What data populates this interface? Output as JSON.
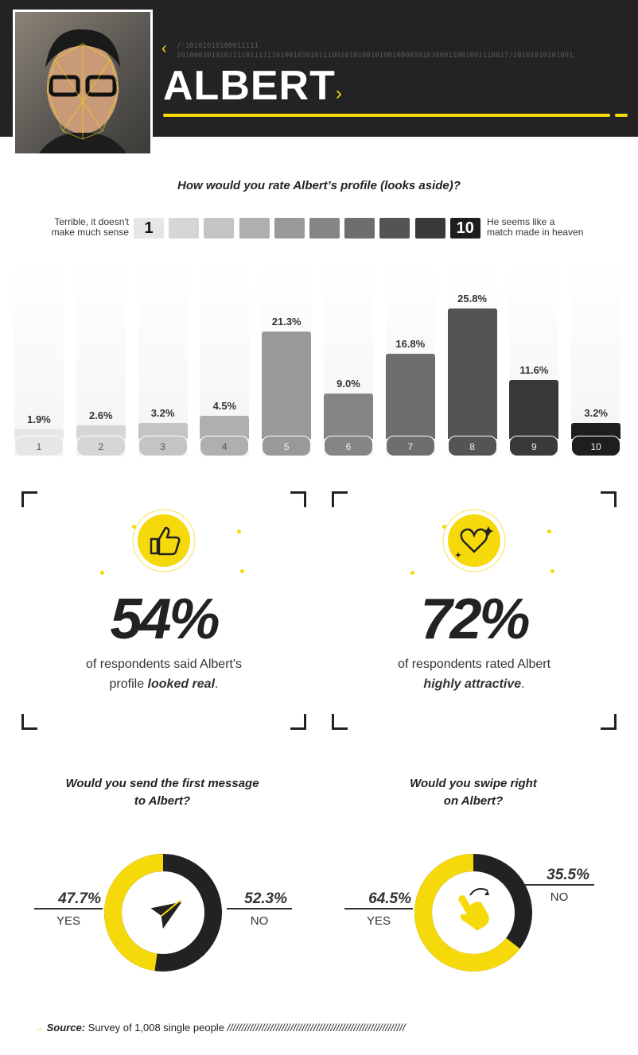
{
  "header": {
    "title": "ALBERT",
    "binary_line1": "/'10101010100011111",
    "binary_line2": "10100030101011110111111010010101011100101010010100100001010300011001001110017/1010101010100111117",
    "accent": "#f5d90a"
  },
  "rating_question": "How would you rate Albert’s profile (looks aside)?",
  "scale": {
    "low_label_1": "Terrible, it doesn't",
    "low_label_2": "make much sense",
    "low": "1",
    "high": "10",
    "high_label_1": "He seems like a",
    "high_label_2": "match made in heaven"
  },
  "chart_data": {
    "type": "bar",
    "categories": [
      "1",
      "2",
      "3",
      "4",
      "5",
      "6",
      "7",
      "8",
      "9",
      "10"
    ],
    "values": [
      1.9,
      2.6,
      3.2,
      4.5,
      21.3,
      9.0,
      16.8,
      25.8,
      11.6,
      3.2
    ],
    "value_labels": [
      "1.9%",
      "2.6%",
      "3.2%",
      "4.5%",
      "21.3%",
      "9.0%",
      "16.8%",
      "25.8%",
      "11.6%",
      "3.2%"
    ],
    "colors": [
      "#e6e6e6",
      "#d6d6d6",
      "#c4c4c4",
      "#afafaf",
      "#999999",
      "#858585",
      "#6e6e6e",
      "#545454",
      "#393939",
      "#1e1e1e"
    ]
  },
  "stats": [
    {
      "icon": "thumbs-up-icon",
      "value": "54%",
      "caption_1": "of respondents said Albert's",
      "caption_2_pre": "profile ",
      "caption_2_em": "looked real",
      "caption_2_post": "."
    },
    {
      "icon": "heart-icon",
      "value": "72%",
      "caption_1": "of respondents rated Albert",
      "caption_2_pre": "",
      "caption_2_em": "highly attractive",
      "caption_2_post": "."
    }
  ],
  "polls": [
    {
      "question_1": "Would you send the first message",
      "question_2": "to Albert?",
      "yes_pct": "47.7%",
      "yes_label": "YES",
      "no_pct": "52.3%",
      "no_label": "NO",
      "yes_value": 47.7,
      "no_value": 52.3,
      "icon": "paper-plane-icon"
    },
    {
      "question_1": "Would you swipe right",
      "question_2": "on Albert?",
      "yes_pct": "64.5%",
      "yes_label": "YES",
      "no_pct": "35.5%",
      "no_label": "NO",
      "yes_value": 64.5,
      "no_value": 35.5,
      "icon": "swipe-hand-icon"
    }
  ],
  "source": {
    "label": "Source:",
    "text": " Survey of 1,008 single people ",
    "slashes": "//////////////////////////////////////////////////////////////"
  }
}
